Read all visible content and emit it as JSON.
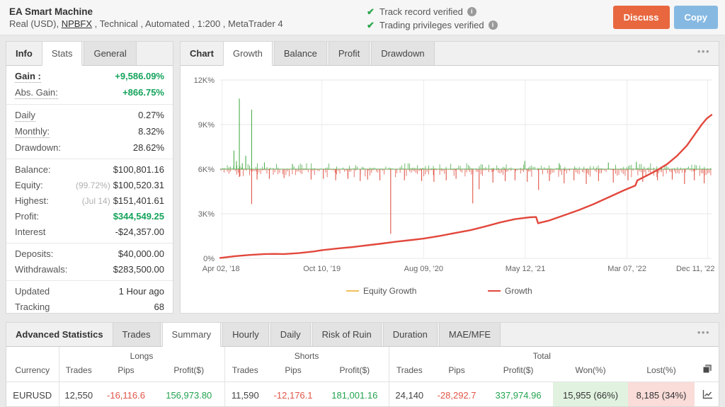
{
  "header": {
    "title": "EA Smart Machine",
    "subtitle": {
      "prefix": "Real (USD), ",
      "broker": "NPBFX",
      "suffix": " , Technical , Automated , 1:200 , MetaTrader 4"
    },
    "badges": [
      "Track record verified",
      "Trading privileges verified"
    ],
    "discuss_label": "Discuss",
    "copy_label": "Copy",
    "colors": {
      "discuss_bg": "#e8673f",
      "copy_bg": "#86b9e2",
      "check_green": "#2ea64e"
    }
  },
  "info_panel": {
    "title": "Info",
    "tabs": [
      {
        "label": "Stats",
        "active": true
      },
      {
        "label": "General",
        "active": false
      }
    ],
    "groups": [
      {
        "rows": [
          {
            "label": "Gain :",
            "value": "+9,586.09%",
            "label_cls": "bold dotted",
            "value_cls": "green"
          },
          {
            "label": "Abs. Gain:",
            "value": "+866.75%",
            "label_cls": "dotted",
            "value_cls": "green"
          }
        ]
      },
      {
        "rows": [
          {
            "label": "Daily",
            "value": "0.27%",
            "label_cls": "dotted"
          },
          {
            "label": "Monthly:",
            "value": "8.32%",
            "label_cls": "dotted"
          },
          {
            "label": "Drawdown:",
            "value": "28.62%"
          }
        ]
      },
      {
        "rows": [
          {
            "label": "Balance:",
            "value": "$100,801.16"
          },
          {
            "label": "Equity:",
            "prefix": "(99.72%)",
            "value": "$100,520.31"
          },
          {
            "label": "Highest:",
            "prefix": "(Jul 14)",
            "value": "$151,401.61"
          },
          {
            "label": "Profit:",
            "value": "$344,549.25",
            "value_cls": "green"
          },
          {
            "label": "Interest",
            "value": "-$24,357.00"
          }
        ]
      },
      {
        "rows": [
          {
            "label": "Deposits:",
            "value": "$40,000.00"
          },
          {
            "label": "Withdrawals:",
            "value": "$283,500.00"
          }
        ]
      },
      {
        "rows": [
          {
            "label": "Updated",
            "value": "1 Hour ago"
          },
          {
            "label": "Tracking",
            "value": "68"
          }
        ]
      }
    ]
  },
  "chart_panel": {
    "title": "Chart",
    "tabs": [
      {
        "label": "Growth",
        "active": true
      },
      {
        "label": "Balance",
        "active": false
      },
      {
        "label": "Profit",
        "active": false
      },
      {
        "label": "Drawdown",
        "active": false
      }
    ],
    "menu_icon": "ellipsis-icon"
  },
  "chart_data": {
    "type": "line",
    "title": "",
    "xlabel": "",
    "ylabel": "",
    "ylim": [
      0,
      12000
    ],
    "grid": true,
    "legend_position": "bottom-center",
    "y_ticks": [
      {
        "v": 0,
        "label": "0%"
      },
      {
        "v": 3000,
        "label": "3K%"
      },
      {
        "v": 6000,
        "label": "6K%"
      },
      {
        "v": 9000,
        "label": "9K%"
      },
      {
        "v": 12000,
        "label": "12K%"
      }
    ],
    "x_ticks": [
      {
        "f": 0.004,
        "label": "Apr 02, '18"
      },
      {
        "f": 0.207,
        "label": "Oct 10, '19"
      },
      {
        "f": 0.414,
        "label": "Aug 09, '20"
      },
      {
        "f": 0.621,
        "label": "May 12, '21"
      },
      {
        "f": 0.828,
        "label": "Mar 07, '22"
      },
      {
        "f": 0.992,
        "label": "Dec 11, '22"
      }
    ],
    "legend": [
      {
        "label": "Equity Growth",
        "color": "#f0c05a"
      },
      {
        "label": "Growth",
        "color": "#e2483d"
      }
    ],
    "series": [
      {
        "name": "Equity Growth",
        "color": "#f0c05a",
        "points": []
      },
      {
        "name": "Growth",
        "color": "#e2483d",
        "points": [
          [
            0,
            30
          ],
          [
            0.03,
            150
          ],
          [
            0.06,
            230
          ],
          [
            0.09,
            290
          ],
          [
            0.11,
            300
          ],
          [
            0.13,
            290
          ],
          [
            0.16,
            350
          ],
          [
            0.19,
            460
          ],
          [
            0.207,
            550
          ],
          [
            0.24,
            670
          ],
          [
            0.27,
            760
          ],
          [
            0.3,
            880
          ],
          [
            0.33,
            1000
          ],
          [
            0.36,
            1130
          ],
          [
            0.39,
            1240
          ],
          [
            0.414,
            1330
          ],
          [
            0.45,
            1530
          ],
          [
            0.48,
            1720
          ],
          [
            0.51,
            1900
          ],
          [
            0.54,
            2150
          ],
          [
            0.57,
            2420
          ],
          [
            0.6,
            2640
          ],
          [
            0.63,
            2760
          ],
          [
            0.643,
            2780
          ],
          [
            0.647,
            2360
          ],
          [
            0.67,
            2550
          ],
          [
            0.7,
            2900
          ],
          [
            0.73,
            3250
          ],
          [
            0.76,
            3650
          ],
          [
            0.79,
            4100
          ],
          [
            0.82,
            4550
          ],
          [
            0.845,
            4900
          ],
          [
            0.849,
            5250
          ],
          [
            0.87,
            5600
          ],
          [
            0.89,
            5950
          ],
          [
            0.91,
            6350
          ],
          [
            0.93,
            6900
          ],
          [
            0.95,
            7600
          ],
          [
            0.965,
            8300
          ],
          [
            0.98,
            9000
          ],
          [
            0.99,
            9400
          ],
          [
            1.0,
            9650
          ]
        ]
      }
    ],
    "spike_band": {
      "baseline": 6000,
      "green_color": "#4cae4c",
      "red_color": "#e05548",
      "noise_bars": 310,
      "noise_up_max": 380,
      "noise_down_max": 520,
      "green_spikes": [
        [
          0.028,
          7250
        ],
        [
          0.033,
          6550
        ],
        [
          0.039,
          10750
        ],
        [
          0.045,
          6400
        ],
        [
          0.052,
          6900
        ],
        [
          0.064,
          10000
        ],
        [
          0.09,
          6450
        ],
        [
          0.147,
          6350
        ],
        [
          0.62,
          6550
        ],
        [
          0.69,
          6400
        ],
        [
          0.79,
          6450
        ],
        [
          0.847,
          6500
        ]
      ],
      "red_spikes": [
        [
          0.039,
          5480
        ],
        [
          0.064,
          3650
        ],
        [
          0.075,
          5300
        ],
        [
          0.1,
          5350
        ],
        [
          0.13,
          5400
        ],
        [
          0.185,
          5300
        ],
        [
          0.21,
          5350
        ],
        [
          0.235,
          5250
        ],
        [
          0.26,
          5350
        ],
        [
          0.285,
          5200
        ],
        [
          0.3,
          5300
        ],
        [
          0.325,
          5250
        ],
        [
          0.347,
          1650
        ],
        [
          0.375,
          5250
        ],
        [
          0.41,
          5200
        ],
        [
          0.435,
          5150
        ],
        [
          0.46,
          5250
        ],
        [
          0.48,
          5350
        ],
        [
          0.514,
          3700
        ],
        [
          0.527,
          4650
        ],
        [
          0.555,
          5100
        ],
        [
          0.58,
          5200
        ],
        [
          0.6,
          5250
        ],
        [
          0.625,
          5150
        ],
        [
          0.648,
          4600
        ],
        [
          0.67,
          5200
        ],
        [
          0.7,
          5050
        ],
        [
          0.72,
          5250
        ],
        [
          0.745,
          5000
        ],
        [
          0.77,
          5200
        ],
        [
          0.8,
          5100
        ],
        [
          0.83,
          5250
        ],
        [
          0.86,
          5150
        ],
        [
          0.89,
          5250
        ],
        [
          0.92,
          5300
        ],
        [
          0.945,
          5000
        ],
        [
          0.965,
          5250
        ],
        [
          0.985,
          5050
        ]
      ]
    }
  },
  "stats_panel": {
    "title": "Advanced Statistics",
    "tabs": [
      {
        "label": "Trades",
        "active": false
      },
      {
        "label": "Summary",
        "active": true
      },
      {
        "label": "Hourly",
        "active": false
      },
      {
        "label": "Daily",
        "active": false
      },
      {
        "label": "Risk of Ruin",
        "active": false
      },
      {
        "label": "Duration",
        "active": false
      },
      {
        "label": "MAE/MFE",
        "active": false
      }
    ],
    "menu_icon": "ellipsis-icon"
  },
  "table": {
    "group_headers": [
      {
        "label": "",
        "span": 1
      },
      {
        "label": "Longs",
        "span": 3
      },
      {
        "label": "Shorts",
        "span": 3
      },
      {
        "label": "Total",
        "span": 5
      },
      {
        "label": "",
        "span": 1
      }
    ],
    "columns": [
      "Currency",
      "Trades",
      "Pips",
      "Profit($)",
      "Trades",
      "Pips",
      "Profit($)",
      "Trades",
      "Pips",
      "Profit($)",
      "Won(%)",
      "Lost(%)"
    ],
    "rows": [
      {
        "cells": [
          {
            "text": "EURUSD",
            "cls": ""
          },
          {
            "text": "12,550",
            "cls": ""
          },
          {
            "text": "-16,116.6",
            "cls": "neg"
          },
          {
            "text": "156,973.80",
            "cls": "pos"
          },
          {
            "text": "11,590",
            "cls": ""
          },
          {
            "text": "-12,176.1",
            "cls": "neg"
          },
          {
            "text": "181,001.16",
            "cls": "pos"
          },
          {
            "text": "24,140",
            "cls": ""
          },
          {
            "text": "-28,292.7",
            "cls": "neg"
          },
          {
            "text": "337,974.96",
            "cls": "pos"
          },
          {
            "text": "15,955 (66%)",
            "cls": "won"
          },
          {
            "text": "8,185 (34%)",
            "cls": "lost"
          }
        ]
      }
    ],
    "icons": {
      "header_icon": "copy-table-icon",
      "row_icon": "chart-row-icon"
    }
  }
}
